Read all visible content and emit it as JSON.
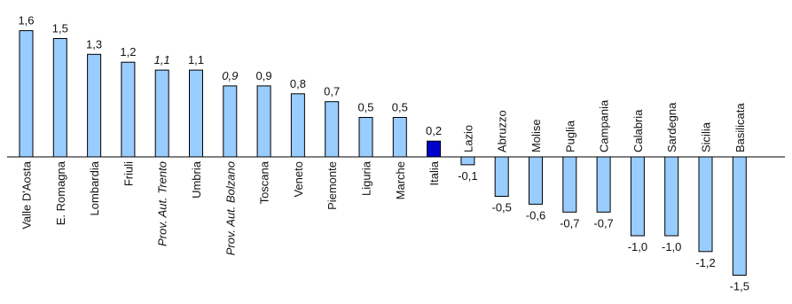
{
  "chart_data": {
    "type": "bar",
    "title": "",
    "xlabel": "",
    "ylabel": "",
    "ylim": [
      -1.6,
      1.7
    ],
    "categories": [
      "Valle D'Aosta",
      "E. Romagna",
      "Lombardia",
      "Friuli",
      "Prov. Aut. Trento",
      "Umbria",
      "Prov. Aut. Bolzano",
      "Toscana",
      "Veneto",
      "Piemonte",
      "Liguria",
      "Marche",
      "Italia",
      "Lazio",
      "Abruzzo",
      "Molise",
      "Puglia",
      "Campania",
      "Calabria",
      "Sardegna",
      "Sicilia",
      "Basilicata"
    ],
    "values": [
      1.6,
      1.5,
      1.3,
      1.2,
      1.1,
      1.1,
      0.9,
      0.9,
      0.8,
      0.7,
      0.5,
      0.5,
      0.2,
      -0.1,
      -0.5,
      -0.6,
      -0.7,
      -0.7,
      -1.0,
      -1.0,
      -1.2,
      -1.5
    ],
    "value_labels": [
      "1,6",
      "1,5",
      "1,3",
      "1,2",
      "1,1",
      "1,1",
      "0,9",
      "0,9",
      "0,8",
      "0,7",
      "0,5",
      "0,5",
      "0,2",
      "-0,1",
      "-0,5",
      "-0,6",
      "-0,7",
      "-0,7",
      "-1,0",
      "-1,0",
      "-1,2",
      "-1,5"
    ],
    "italic_categories": [
      "Prov. Aut. Trento",
      "Prov. Aut. Bolzano"
    ],
    "highlight_category": "Italia",
    "colors": {
      "bar": "#99ccff",
      "highlight": "#0000cc",
      "stroke": "#000000"
    },
    "grid": false,
    "legend": "none"
  }
}
